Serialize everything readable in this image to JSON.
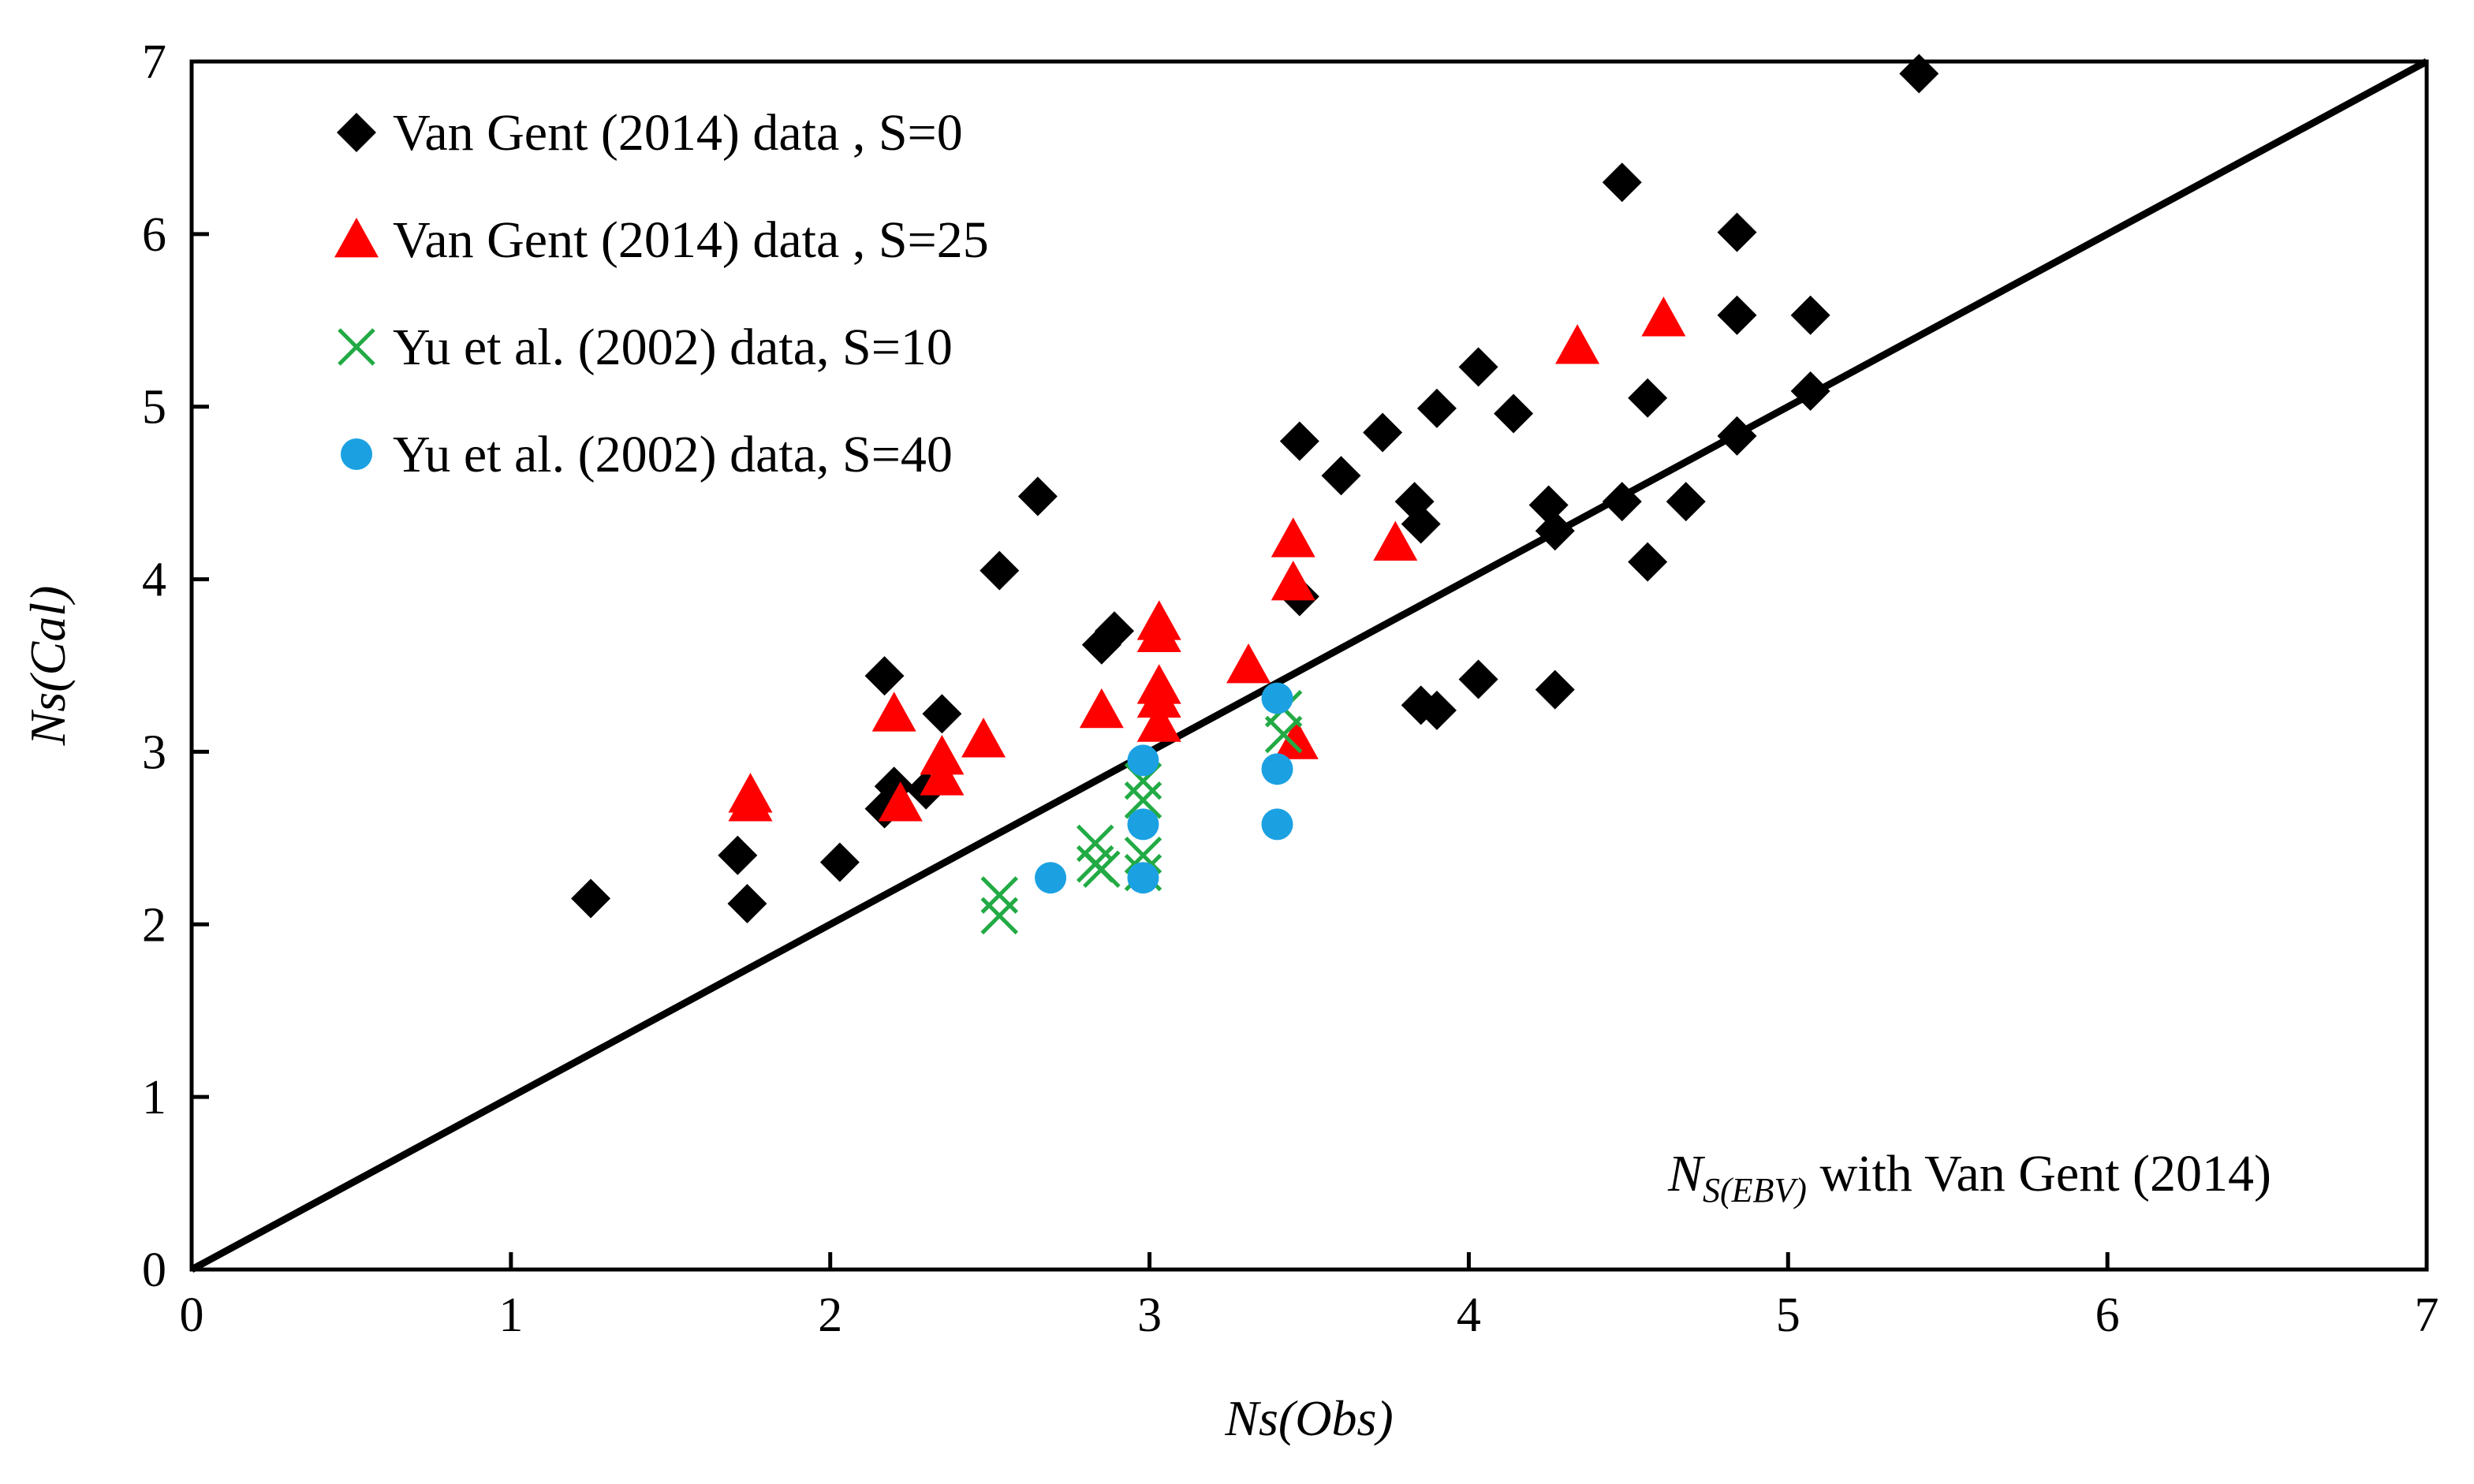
{
  "chart_data": {
    "type": "scatter",
    "title": "",
    "xlabel": "Ns(Obs)",
    "ylabel": "Ns(Cal)",
    "xlim": [
      0,
      7
    ],
    "ylim": [
      0,
      7
    ],
    "xticks": [
      0,
      1,
      2,
      3,
      4,
      5,
      6,
      7
    ],
    "yticks": [
      0,
      1,
      2,
      3,
      4,
      5,
      6,
      7
    ],
    "grid": false,
    "legend_position": "top-left",
    "reference_line": {
      "name": "1:1 line",
      "x": [
        0,
        7
      ],
      "y": [
        0,
        7
      ],
      "color": "#000000"
    },
    "annotation": {
      "symbol": "N",
      "subscript": "S(EBV)",
      "text": " with Van Gent (2014)",
      "position": "bottom-right"
    },
    "series": [
      {
        "name": "Van Gent  (2014) data , S=0",
        "marker": "diamond",
        "color": "#000000",
        "points": [
          [
            1.25,
            2.15
          ],
          [
            1.71,
            2.4
          ],
          [
            1.74,
            2.12
          ],
          [
            2.03,
            2.36
          ],
          [
            2.17,
            3.44
          ],
          [
            2.2,
            2.8
          ],
          [
            2.17,
            2.67
          ],
          [
            2.3,
            2.78
          ],
          [
            2.35,
            3.22
          ],
          [
            2.53,
            4.05
          ],
          [
            2.65,
            4.48
          ],
          [
            2.85,
            3.62
          ],
          [
            2.89,
            3.7
          ],
          [
            3.47,
            4.8
          ],
          [
            3.47,
            3.9
          ],
          [
            3.6,
            4.6
          ],
          [
            3.73,
            4.85
          ],
          [
            3.83,
            4.45
          ],
          [
            3.85,
            4.32
          ],
          [
            3.9,
            4.99
          ],
          [
            3.85,
            3.27
          ],
          [
            3.9,
            3.24
          ],
          [
            4.03,
            5.23
          ],
          [
            4.03,
            3.42
          ],
          [
            4.14,
            4.96
          ],
          [
            4.25,
            4.43
          ],
          [
            4.27,
            4.28
          ],
          [
            4.27,
            3.36
          ],
          [
            4.48,
            6.3
          ],
          [
            4.48,
            4.45
          ],
          [
            4.56,
            5.05
          ],
          [
            4.56,
            4.1
          ],
          [
            4.68,
            4.45
          ],
          [
            4.84,
            6.01
          ],
          [
            4.84,
            5.53
          ],
          [
            4.84,
            4.83
          ],
          [
            5.07,
            5.53
          ],
          [
            5.07,
            5.09
          ],
          [
            5.41,
            6.93
          ]
        ]
      },
      {
        "name": "Van Gent  (2014) data , S=25",
        "marker": "triangle",
        "color": "#ff0000",
        "points": [
          [
            1.75,
            2.75
          ],
          [
            1.75,
            2.7
          ],
          [
            2.2,
            3.22
          ],
          [
            2.22,
            2.7
          ],
          [
            2.35,
            2.97
          ],
          [
            2.35,
            2.85
          ],
          [
            2.48,
            3.07
          ],
          [
            2.85,
            3.24
          ],
          [
            3.03,
            3.75
          ],
          [
            3.03,
            3.68
          ],
          [
            3.03,
            3.38
          ],
          [
            3.03,
            3.3
          ],
          [
            3.03,
            3.16
          ],
          [
            3.31,
            3.5
          ],
          [
            3.45,
            4.23
          ],
          [
            3.45,
            3.98
          ],
          [
            3.46,
            3.06
          ],
          [
            3.77,
            4.21
          ],
          [
            4.34,
            5.35
          ],
          [
            4.61,
            5.51
          ]
        ]
      },
      {
        "name": "Yu et al. (2002) data, S=10",
        "marker": "cross",
        "color": "#22aa44",
        "points": [
          [
            2.53,
            2.17
          ],
          [
            2.53,
            2.05
          ],
          [
            2.83,
            2.47
          ],
          [
            2.83,
            2.35
          ],
          [
            2.85,
            2.32
          ],
          [
            2.98,
            2.83
          ],
          [
            2.98,
            2.72
          ],
          [
            2.98,
            2.4
          ],
          [
            2.98,
            2.3
          ],
          [
            3.42,
            3.25
          ],
          [
            3.42,
            3.1
          ]
        ]
      },
      {
        "name": "Yu et al. (2002) data, S=40",
        "marker": "circle",
        "color": "#1ba1e2",
        "points": [
          [
            2.69,
            2.27
          ],
          [
            2.98,
            2.95
          ],
          [
            2.98,
            2.58
          ],
          [
            2.98,
            2.27
          ],
          [
            3.4,
            3.31
          ],
          [
            3.4,
            2.9
          ],
          [
            3.4,
            2.58
          ]
        ]
      }
    ]
  }
}
